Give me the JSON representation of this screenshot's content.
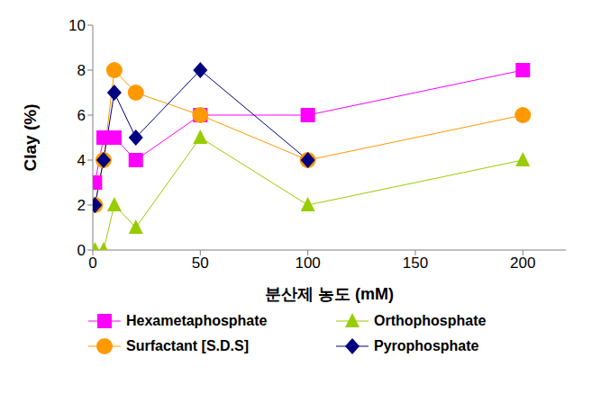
{
  "chart_data": {
    "type": "line",
    "x_label": "분산제 농도 (mM)",
    "y_label": "Clay (%)",
    "x": [
      1,
      5,
      10,
      20,
      50,
      100,
      200
    ],
    "xlim": [
      0,
      220
    ],
    "xticks": [
      0,
      50,
      100,
      150,
      200
    ],
    "ylim": [
      0,
      10
    ],
    "yticks": [
      0,
      2,
      4,
      6,
      8,
      10
    ],
    "grid": false,
    "legend": "bottom",
    "series": [
      {
        "name": "Hexametaphosphate",
        "color": "#ff00ff",
        "marker": "square",
        "values": [
          3,
          5,
          5,
          4,
          6,
          6,
          8
        ]
      },
      {
        "name": "Orthophosphate",
        "color": "#99cc00",
        "marker": "triangle",
        "values": [
          0,
          0,
          2,
          1,
          5,
          2,
          4
        ]
      },
      {
        "name": "Surfactant [S.D.S]",
        "color": "#ff9900",
        "marker": "circle",
        "values": [
          2,
          4,
          8,
          7,
          6,
          4,
          6
        ]
      },
      {
        "name": "Pyrophosphate",
        "color": "#000080",
        "marker": "diamond",
        "values": [
          2,
          4,
          7,
          5,
          8,
          4,
          null
        ]
      }
    ]
  }
}
